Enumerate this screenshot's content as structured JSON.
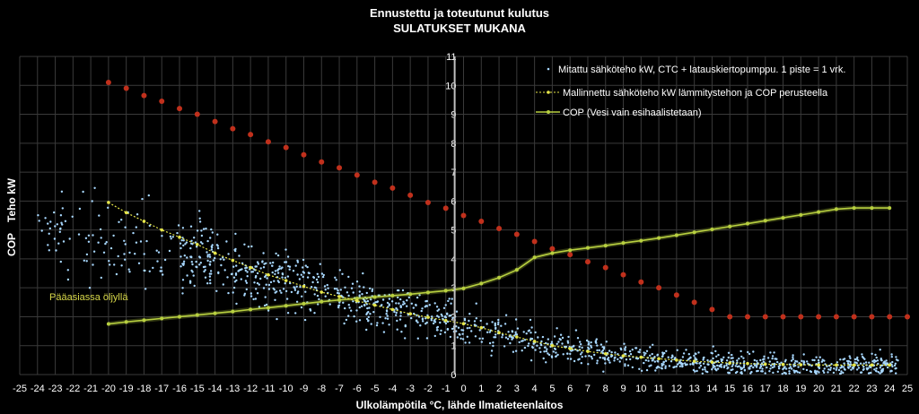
{
  "chart_data": {
    "type": "scatter",
    "title": "Ennustettu ja toteutunut kulutus",
    "subtitle": "SULATUKSET MUKANA",
    "xlabel": "Ulkolämpötila °C, lähde Ilmatieteenlaitos",
    "ylabel_left": "COP",
    "ylabel_right": "Teho kW",
    "xlim": [
      -25,
      25
    ],
    "ylim": [
      0,
      11
    ],
    "x_ticks": [
      -25,
      -24,
      -23,
      -22,
      -21,
      -20,
      -19,
      -18,
      -17,
      -16,
      -15,
      -14,
      -13,
      -12,
      -11,
      -10,
      -9,
      -8,
      -7,
      -6,
      -5,
      -4,
      -3,
      -2,
      -1,
      0,
      1,
      2,
      3,
      4,
      5,
      6,
      7,
      8,
      9,
      10,
      11,
      12,
      13,
      14,
      15,
      16,
      17,
      18,
      19,
      20,
      21,
      22,
      23,
      24,
      25
    ],
    "y_ticks": [
      0,
      1,
      2,
      3,
      4,
      5,
      6,
      7,
      8,
      9,
      10,
      11
    ],
    "grid": true,
    "legend_position": "top-right",
    "vertical_marker_x": -0.5,
    "annotation": "Pääasiassa öljyllä",
    "colors": {
      "background": "#000000",
      "grid": "#3a3a3a",
      "measured": "#a8d8ff",
      "modelled": "#e6e64a",
      "cop": "#b8d040",
      "red_series": "#c0301c",
      "marker_line": "#bfbfbf"
    },
    "series": [
      {
        "name": "Mitattu sähköteho kW, CTC + latauskiertopumppu.  1 piste = 1 vrk.",
        "kind": "scatter",
        "trend_points": [
          [
            -15,
            4.1
          ],
          [
            -12,
            3.5
          ],
          [
            -10,
            3.2
          ],
          [
            -8,
            2.85
          ],
          [
            -6,
            2.55
          ],
          [
            -4,
            2.25
          ],
          [
            -2,
            2.0
          ],
          [
            0,
            1.75
          ],
          [
            2,
            1.45
          ],
          [
            4,
            1.15
          ],
          [
            6,
            0.9
          ],
          [
            8,
            0.7
          ],
          [
            10,
            0.55
          ],
          [
            12,
            0.45
          ],
          [
            14,
            0.38
          ],
          [
            16,
            0.33
          ],
          [
            18,
            0.3
          ],
          [
            20,
            0.3
          ],
          [
            22,
            0.3
          ],
          [
            24,
            0.32
          ]
        ],
        "x_range": [
          -24,
          24.5
        ],
        "approx_count": 1400
      },
      {
        "name": "Mallinnettu sähköteho kW lämmitystehon ja COP perusteella",
        "kind": "line",
        "x": [
          -20,
          -19,
          -18,
          -17,
          -16,
          -15,
          -14,
          -13,
          -12,
          -11,
          -10,
          -9,
          -8,
          -7,
          -6,
          -5,
          -4,
          -3,
          -2,
          -1,
          0,
          1,
          2,
          3,
          4,
          5,
          6,
          7,
          8,
          9,
          10,
          11,
          12,
          13,
          14,
          15,
          16,
          17,
          18,
          19,
          20,
          21,
          22,
          23,
          24
        ],
        "y": [
          5.95,
          5.6,
          5.3,
          5.0,
          4.75,
          4.5,
          4.2,
          3.95,
          3.7,
          3.45,
          3.25,
          3.05,
          2.85,
          2.7,
          2.55,
          2.4,
          2.25,
          2.1,
          1.98,
          1.87,
          1.76,
          1.62,
          1.45,
          1.3,
          1.15,
          1.0,
          0.9,
          0.8,
          0.72,
          0.65,
          0.6,
          0.55,
          0.5,
          0.46,
          0.43,
          0.4,
          0.38,
          0.36,
          0.35,
          0.34,
          0.33,
          0.33,
          0.33,
          0.33,
          0.33
        ]
      },
      {
        "name": "COP (Vesi vain esihaalistetaan)",
        "kind": "line",
        "x": [
          -20,
          -19,
          -18,
          -17,
          -16,
          -15,
          -14,
          -13,
          -12,
          -11,
          -10,
          -9,
          -8,
          -7,
          -6,
          -5,
          -4,
          -3,
          -2,
          -1,
          0,
          1,
          2,
          3,
          4,
          5,
          6,
          7,
          8,
          9,
          10,
          11,
          12,
          13,
          14,
          15,
          16,
          17,
          18,
          19,
          20,
          21,
          22,
          23,
          24
        ],
        "y": [
          1.75,
          1.82,
          1.88,
          1.94,
          2.0,
          2.06,
          2.12,
          2.18,
          2.25,
          2.31,
          2.38,
          2.45,
          2.52,
          2.58,
          2.63,
          2.68,
          2.73,
          2.78,
          2.84,
          2.9,
          2.98,
          3.15,
          3.35,
          3.62,
          4.05,
          4.2,
          4.3,
          4.38,
          4.46,
          4.55,
          4.63,
          4.72,
          4.82,
          4.92,
          5.02,
          5.12,
          5.22,
          5.32,
          5.42,
          5.52,
          5.62,
          5.72,
          5.76,
          5.76,
          5.76
        ]
      },
      {
        "name": "",
        "kind": "dots",
        "x": [
          -20,
          -19,
          -18,
          -17,
          -16,
          -15,
          -14,
          -13,
          -12,
          -11,
          -10,
          -9,
          -8,
          -7,
          -6,
          -5,
          -4,
          -3,
          -2,
          -1,
          0,
          1,
          2,
          3,
          4,
          5,
          6,
          7,
          8,
          9,
          10,
          11,
          12,
          13,
          14,
          15,
          16,
          17,
          18,
          19,
          20,
          21,
          22,
          23,
          24,
          25
        ],
        "y": [
          10.1,
          9.9,
          9.65,
          9.45,
          9.2,
          9.0,
          8.75,
          8.5,
          8.3,
          8.05,
          7.85,
          7.6,
          7.35,
          7.15,
          6.9,
          6.65,
          6.45,
          6.2,
          5.95,
          5.75,
          5.5,
          5.3,
          5.05,
          4.85,
          4.6,
          4.35,
          4.15,
          3.9,
          3.7,
          3.45,
          3.2,
          3.0,
          2.75,
          2.5,
          2.25,
          2.0,
          2.0,
          2.0,
          2.0,
          2.0,
          2.0,
          2.0,
          2.0,
          2.0,
          2.0,
          2.0
        ]
      }
    ]
  }
}
